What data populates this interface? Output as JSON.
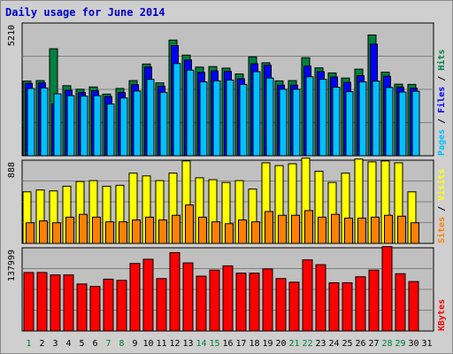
{
  "title": "Daily usage for June 2014",
  "colors": {
    "hits": "#008040",
    "files": "#0000ff",
    "pages": "#00c0ff",
    "visits": "#ffff00",
    "sites": "#ff8000",
    "kbytes": "#ff0000",
    "weekday_label": "#000000",
    "weekend_label": "#008040",
    "plot_bg": "#c0c0c0",
    "frame_bg": "#cfcfcf"
  },
  "chart_data": [
    {
      "type": "bar",
      "name": "hits-files-pages",
      "ymax": 5210,
      "ymax_label": "5210",
      "legend": [
        {
          "key": "pages",
          "label": "Pages"
        },
        {
          "sep": " / "
        },
        {
          "key": "files",
          "label": "Files"
        },
        {
          "sep": " / "
        },
        {
          "key": "hits",
          "label": "Hits"
        }
      ],
      "x": [
        "1",
        "2",
        "3",
        "4",
        "5",
        "6",
        "7",
        "8",
        "9",
        "10",
        "11",
        "12",
        "13",
        "14",
        "15",
        "16",
        "17",
        "18",
        "19",
        "20",
        "21",
        "22",
        "23",
        "24",
        "25",
        "26",
        "27",
        "28",
        "29",
        "30",
        "31"
      ],
      "weekend": [
        1,
        7,
        8,
        14,
        15,
        21,
        22,
        28,
        29
      ],
      "series": [
        {
          "name": "Hits",
          "key": "hits",
          "values": [
            2930,
            2950,
            4200,
            2750,
            2610,
            2700,
            2420,
            2640,
            2950,
            3600,
            2860,
            4540,
            3950,
            3480,
            3500,
            3440,
            3210,
            3880,
            3650,
            2940,
            2950,
            3850,
            3450,
            3250,
            3050,
            3400,
            4740,
            3280,
            2810,
            2800,
            0
          ]
        },
        {
          "name": "Files",
          "key": "files",
          "values": [
            2840,
            2860,
            2030,
            2570,
            2480,
            2550,
            2320,
            2480,
            2790,
            3480,
            2730,
            4320,
            3760,
            3270,
            3330,
            3310,
            3020,
            3610,
            3550,
            2770,
            2770,
            3520,
            3300,
            3090,
            2880,
            3140,
            4380,
            3120,
            2690,
            2650,
            0
          ]
        },
        {
          "name": "Pages",
          "key": "pages",
          "values": [
            2640,
            2660,
            2430,
            2360,
            2340,
            2360,
            2030,
            2270,
            2540,
            3000,
            2490,
            3620,
            3360,
            2900,
            2940,
            2970,
            2800,
            3300,
            3050,
            2610,
            2610,
            3100,
            3000,
            2690,
            2520,
            2900,
            2930,
            2680,
            2500,
            2530,
            0
          ]
        }
      ]
    },
    {
      "type": "bar",
      "name": "visits-sites",
      "ymax": 888,
      "ymax_label": "888",
      "legend": [
        {
          "key": "sites",
          "label": "Sites"
        },
        {
          "sep": " / "
        },
        {
          "key": "visits",
          "label": "Visits"
        }
      ],
      "x": [
        "1",
        "2",
        "3",
        "4",
        "5",
        "6",
        "7",
        "8",
        "9",
        "10",
        "11",
        "12",
        "13",
        "14",
        "15",
        "16",
        "17",
        "18",
        "19",
        "20",
        "21",
        "22",
        "23",
        "24",
        "25",
        "26",
        "27",
        "28",
        "29",
        "30",
        "31"
      ],
      "series": [
        {
          "name": "Visits",
          "key": "visits",
          "values": [
            550,
            570,
            560,
            610,
            660,
            670,
            610,
            620,
            750,
            720,
            670,
            750,
            880,
            700,
            680,
            650,
            670,
            580,
            860,
            830,
            850,
            910,
            770,
            650,
            750,
            900,
            870,
            880,
            860,
            550,
            0
          ]
        },
        {
          "name": "Sites",
          "key": "sites",
          "values": [
            220,
            240,
            220,
            280,
            310,
            280,
            230,
            230,
            250,
            280,
            250,
            300,
            410,
            280,
            230,
            210,
            250,
            230,
            340,
            300,
            300,
            350,
            280,
            310,
            270,
            270,
            280,
            300,
            290,
            220,
            0
          ]
        }
      ]
    },
    {
      "type": "bar",
      "name": "kbytes",
      "ymax": 137999,
      "ymax_label": "137999",
      "legend": [
        {
          "key": "kbytes",
          "label": "KBytes"
        }
      ],
      "x": [
        "1",
        "2",
        "3",
        "4",
        "5",
        "6",
        "7",
        "8",
        "9",
        "10",
        "11",
        "12",
        "13",
        "14",
        "15",
        "16",
        "17",
        "18",
        "19",
        "20",
        "21",
        "22",
        "23",
        "24",
        "25",
        "26",
        "27",
        "28",
        "29",
        "30",
        "31"
      ],
      "series": [
        {
          "name": "KBytes",
          "key": "kbytes",
          "values": [
            97000,
            97000,
            93000,
            93000,
            78000,
            74000,
            86000,
            84000,
            112000,
            119000,
            87000,
            130000,
            113000,
            91000,
            101000,
            108000,
            96000,
            96000,
            103000,
            87000,
            81000,
            118000,
            110000,
            80000,
            80000,
            90000,
            101000,
            140000,
            95000,
            82000,
            0
          ]
        }
      ]
    }
  ]
}
